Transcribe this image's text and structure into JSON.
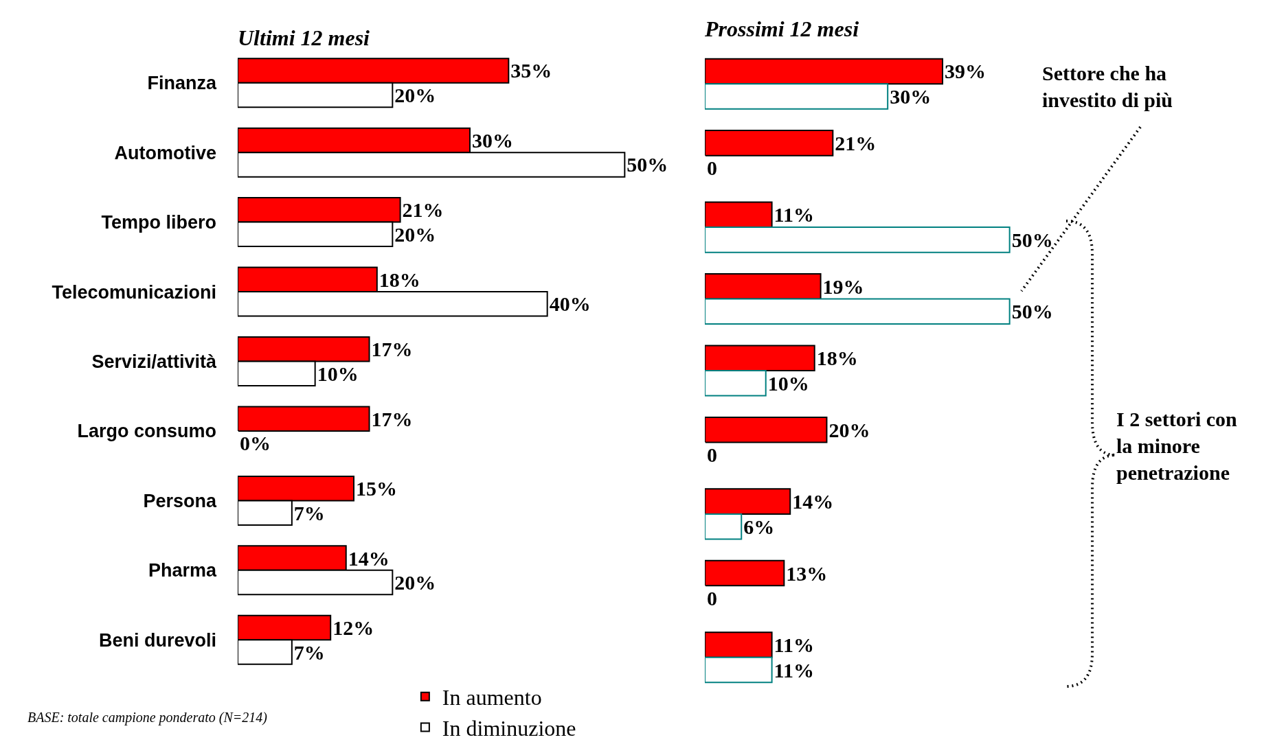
{
  "chart_data": [
    {
      "type": "bar",
      "orientation": "horizontal",
      "title": "Ultimi 12 mesi",
      "categories": [
        "Finanza",
        "Automotive",
        "Tempo libero",
        "Telecomunicazioni",
        "Servizi/attività",
        "Largo consumo",
        "Persona",
        "Pharma",
        "Beni durevoli"
      ],
      "tick_labels": "y",
      "grid": false,
      "legend": "bottom",
      "data_labels": true,
      "series": [
        {
          "name": "In aumento",
          "color": "#ff0000",
          "values": [
            35,
            30,
            21,
            18,
            17,
            17,
            15,
            14,
            12
          ],
          "value_labels": [
            "35%",
            "30%",
            "21%",
            "18%",
            "17%",
            "17%",
            "15%",
            "14%",
            "12%"
          ]
        },
        {
          "name": "In diminuzione",
          "color": "#ffffff",
          "values": [
            20,
            50,
            20,
            40,
            10,
            0,
            7,
            20,
            7
          ],
          "value_labels": [
            "20%",
            "50%",
            "20%",
            "40%",
            "10%",
            "0%",
            "7%",
            "20%",
            "7%"
          ]
        }
      ],
      "annotations": [
        "BASE: totale campione ponderato (N=214)"
      ]
    },
    {
      "type": "bar",
      "orientation": "horizontal",
      "title": "Prossimi 12 mesi",
      "categories": [
        null,
        null,
        null,
        null,
        null,
        null,
        null,
        null,
        null
      ],
      "tick_labels": false,
      "grid": false,
      "legend": false,
      "data_labels": true,
      "series": [
        {
          "color": "#ff0000",
          "values": [
            39,
            21,
            11,
            19,
            18,
            20,
            14,
            13,
            11
          ],
          "value_labels": [
            "39%",
            "21%",
            "11%",
            "19%",
            "18%",
            "20%",
            "14%",
            "13%",
            "11%"
          ]
        },
        {
          "color": "#ffffff",
          "values": [
            30,
            0,
            50,
            50,
            10,
            0,
            6,
            0,
            11
          ],
          "value_labels": [
            "30%",
            "0",
            "50%",
            "50%",
            "10%",
            "0",
            "6%",
            "0",
            "11%"
          ]
        }
      ],
      "annotations": [
        "Settore che ha\ninvestito di più",
        "I 2 settori con\nla minore\npenetrazione"
      ]
    }
  ]
}
